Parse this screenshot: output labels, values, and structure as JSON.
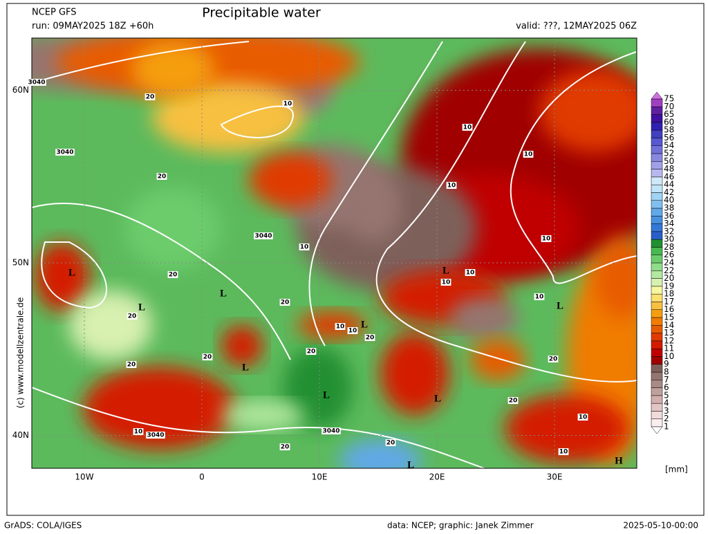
{
  "header": {
    "model": "NCEP GFS",
    "title": "Precipitable water",
    "run": "run: 09MAY2025 18Z +60h",
    "valid": "valid: ???, 12MAY2025 06Z"
  },
  "map": {
    "lat_ticks": [
      {
        "value": 60,
        "label": "60N"
      },
      {
        "value": 50,
        "label": "50N"
      },
      {
        "value": 40,
        "label": "40N"
      }
    ],
    "lon_ticks": [
      {
        "value": -10,
        "label": "10W"
      },
      {
        "value": 0,
        "label": "0"
      },
      {
        "value": 10,
        "label": "10E"
      },
      {
        "value": 20,
        "label": "20E"
      },
      {
        "value": 30,
        "label": "30E"
      }
    ],
    "labels": [
      "L",
      "L",
      "L",
      "L",
      "L",
      "L",
      "L",
      "L",
      "L",
      "L",
      "H",
      "3040",
      "3040",
      "3040",
      "3040",
      "3040",
      "10",
      "10",
      "10",
      "10",
      "10",
      "10",
      "10",
      "10",
      "10",
      "10",
      "10",
      "10",
      "10",
      "10",
      "20",
      "20",
      "20",
      "20",
      "20",
      "20",
      "20",
      "20",
      "20",
      "20",
      "20",
      "20",
      "20"
    ]
  },
  "colorbar": {
    "unit": "[mm]",
    "levels": [
      1,
      2,
      3,
      4,
      5,
      6,
      7,
      8,
      9,
      10,
      11,
      12,
      13,
      14,
      15,
      16,
      17,
      18,
      19,
      20,
      22,
      24,
      26,
      28,
      30,
      32,
      34,
      36,
      38,
      40,
      42,
      44,
      46,
      48,
      50,
      52,
      54,
      56,
      58,
      60,
      65,
      70,
      75
    ],
    "colors": [
      "#fbeeee",
      "#f0dada",
      "#e3c6c4",
      "#d2aeac",
      "#c0a09c",
      "#a88a86",
      "#95756f",
      "#7e605a",
      "#a00000",
      "#c00000",
      "#d41b00",
      "#e03a00",
      "#e85c00",
      "#f07c00",
      "#f49e10",
      "#f8c040",
      "#fae070",
      "#f6f6a0",
      "#d8f0b0",
      "#b4e8a0",
      "#90dc88",
      "#6ccc6c",
      "#48b850",
      "#209030",
      "#2860c8",
      "#3478d8",
      "#4890e0",
      "#60a8e8",
      "#80c0f0",
      "#a0d4f4",
      "#c0e4f8",
      "#d0e8f8",
      "#b8b8f0",
      "#a0a0e8",
      "#8888e0",
      "#7070d8",
      "#5858d0",
      "#4040c0",
      "#3020b0",
      "#4010a0",
      "#6020a0",
      "#a040c0"
    ],
    "under_color": "#ffffff",
    "over_color": "#d070e0"
  },
  "footer": {
    "software": "GrADS: COLA/IGES",
    "credit": "data: NCEP; graphic: Janek Zimmer",
    "timestamp": "2025-05-10-00:00",
    "copyright": "(c) www.modellzentrale.de"
  }
}
